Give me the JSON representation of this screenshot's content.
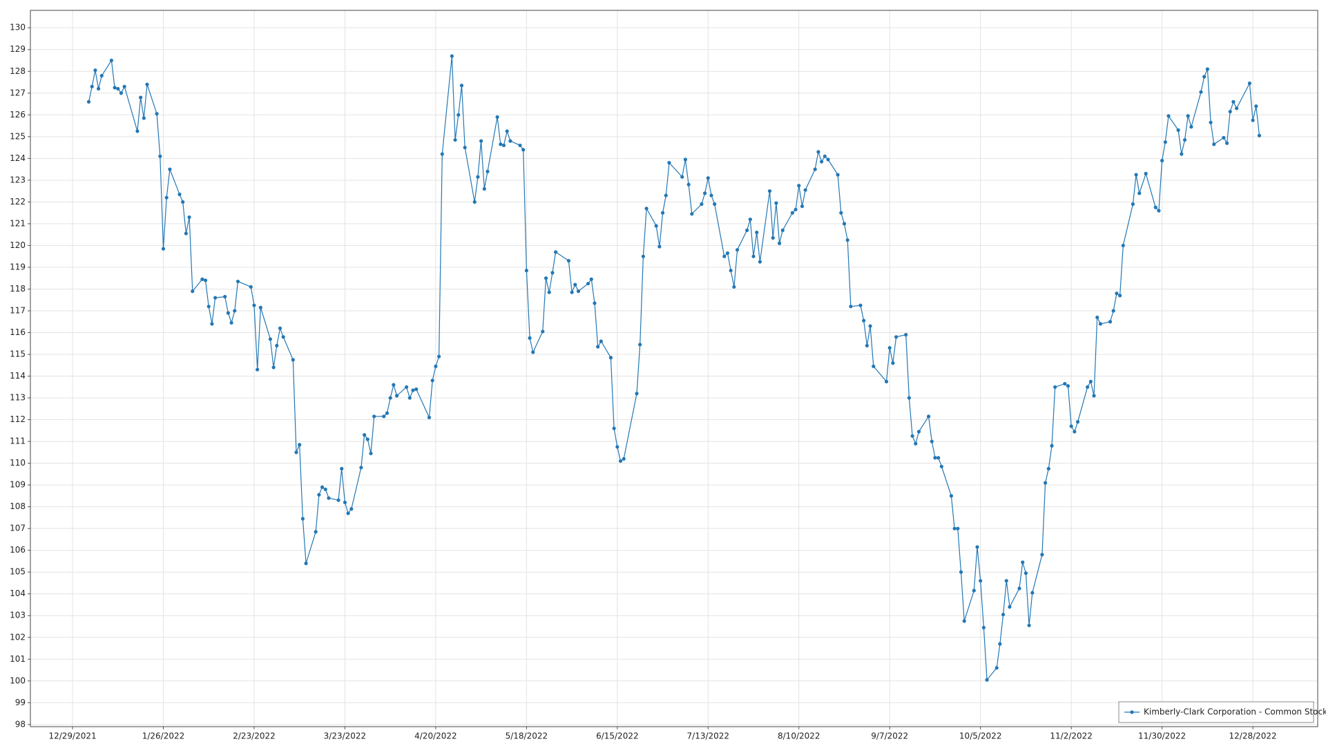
{
  "chart_data": {
    "type": "line",
    "series": [
      {
        "name": "Kimberly-Clark Corporation - Common Stock",
        "color": "#2277b4",
        "x": [
          "2022-01-03",
          "2022-01-04",
          "2022-01-05",
          "2022-01-06",
          "2022-01-07",
          "2022-01-10",
          "2022-01-11",
          "2022-01-12",
          "2022-01-13",
          "2022-01-14",
          "2022-01-18",
          "2022-01-19",
          "2022-01-20",
          "2022-01-21",
          "2022-01-24",
          "2022-01-25",
          "2022-01-26",
          "2022-01-27",
          "2022-01-28",
          "2022-01-31",
          "2022-02-01",
          "2022-02-02",
          "2022-02-03",
          "2022-02-04",
          "2022-02-07",
          "2022-02-08",
          "2022-02-09",
          "2022-02-10",
          "2022-02-11",
          "2022-02-14",
          "2022-02-15",
          "2022-02-16",
          "2022-02-17",
          "2022-02-18",
          "2022-02-22",
          "2022-02-23",
          "2022-02-24",
          "2022-02-25",
          "2022-02-28",
          "2022-03-01",
          "2022-03-02",
          "2022-03-03",
          "2022-03-04",
          "2022-03-07",
          "2022-03-08",
          "2022-03-09",
          "2022-03-10",
          "2022-03-11",
          "2022-03-14",
          "2022-03-15",
          "2022-03-16",
          "2022-03-17",
          "2022-03-18",
          "2022-03-21",
          "2022-03-22",
          "2022-03-23",
          "2022-03-24",
          "2022-03-25",
          "2022-03-28",
          "2022-03-29",
          "2022-03-30",
          "2022-03-31",
          "2022-04-01",
          "2022-04-04",
          "2022-04-05",
          "2022-04-06",
          "2022-04-07",
          "2022-04-08",
          "2022-04-11",
          "2022-04-12",
          "2022-04-13",
          "2022-04-14",
          "2022-04-18",
          "2022-04-19",
          "2022-04-20",
          "2022-04-21",
          "2022-04-22",
          "2022-04-25",
          "2022-04-26",
          "2022-04-27",
          "2022-04-28",
          "2022-04-29",
          "2022-05-02",
          "2022-05-03",
          "2022-05-04",
          "2022-05-05",
          "2022-05-06",
          "2022-05-09",
          "2022-05-10",
          "2022-05-11",
          "2022-05-12",
          "2022-05-13",
          "2022-05-16",
          "2022-05-17",
          "2022-05-18",
          "2022-05-19",
          "2022-05-20",
          "2022-05-23",
          "2022-05-24",
          "2022-05-25",
          "2022-05-26",
          "2022-05-27",
          "2022-05-31",
          "2022-06-01",
          "2022-06-02",
          "2022-06-03",
          "2022-06-06",
          "2022-06-07",
          "2022-06-08",
          "2022-06-09",
          "2022-06-10",
          "2022-06-13",
          "2022-06-14",
          "2022-06-15",
          "2022-06-16",
          "2022-06-17",
          "2022-06-21",
          "2022-06-22",
          "2022-06-23",
          "2022-06-24",
          "2022-06-27",
          "2022-06-28",
          "2022-06-29",
          "2022-06-30",
          "2022-07-01",
          "2022-07-05",
          "2022-07-06",
          "2022-07-07",
          "2022-07-08",
          "2022-07-11",
          "2022-07-12",
          "2022-07-13",
          "2022-07-14",
          "2022-07-15",
          "2022-07-18",
          "2022-07-19",
          "2022-07-20",
          "2022-07-21",
          "2022-07-22",
          "2022-07-25",
          "2022-07-26",
          "2022-07-27",
          "2022-07-28",
          "2022-07-29",
          "2022-08-01",
          "2022-08-02",
          "2022-08-03",
          "2022-08-04",
          "2022-08-05",
          "2022-08-08",
          "2022-08-09",
          "2022-08-10",
          "2022-08-11",
          "2022-08-12",
          "2022-08-15",
          "2022-08-16",
          "2022-08-17",
          "2022-08-18",
          "2022-08-19",
          "2022-08-22",
          "2022-08-23",
          "2022-08-24",
          "2022-08-25",
          "2022-08-26",
          "2022-08-29",
          "2022-08-30",
          "2022-08-31",
          "2022-09-01",
          "2022-09-02",
          "2022-09-06",
          "2022-09-07",
          "2022-09-08",
          "2022-09-09",
          "2022-09-12",
          "2022-09-13",
          "2022-09-14",
          "2022-09-15",
          "2022-09-16",
          "2022-09-19",
          "2022-09-20",
          "2022-09-21",
          "2022-09-22",
          "2022-09-23",
          "2022-09-26",
          "2022-09-27",
          "2022-09-28",
          "2022-09-29",
          "2022-09-30",
          "2022-10-03",
          "2022-10-04",
          "2022-10-05",
          "2022-10-06",
          "2022-10-07",
          "2022-10-10",
          "2022-10-11",
          "2022-10-12",
          "2022-10-13",
          "2022-10-14",
          "2022-10-17",
          "2022-10-18",
          "2022-10-19",
          "2022-10-20",
          "2022-10-21",
          "2022-10-24",
          "2022-10-25",
          "2022-10-26",
          "2022-10-27",
          "2022-10-28",
          "2022-10-31",
          "2022-11-01",
          "2022-11-02",
          "2022-11-03",
          "2022-11-04",
          "2022-11-07",
          "2022-11-08",
          "2022-11-09",
          "2022-11-10",
          "2022-11-11",
          "2022-11-14",
          "2022-11-15",
          "2022-11-16",
          "2022-11-17",
          "2022-11-18",
          "2022-11-21",
          "2022-11-22",
          "2022-11-23",
          "2022-11-25",
          "2022-11-28",
          "2022-11-29",
          "2022-11-30",
          "2022-12-01",
          "2022-12-02",
          "2022-12-05",
          "2022-12-06",
          "2022-12-07",
          "2022-12-08",
          "2022-12-09",
          "2022-12-12",
          "2022-12-13",
          "2022-12-14",
          "2022-12-15",
          "2022-12-16",
          "2022-12-19",
          "2022-12-20",
          "2022-12-21",
          "2022-12-22",
          "2022-12-23",
          "2022-12-27",
          "2022-12-28",
          "2022-12-29",
          "2022-12-30"
        ],
        "values": [
          126.6,
          127.3,
          128.05,
          127.2,
          127.8,
          128.5,
          127.25,
          127.2,
          127.0,
          127.3,
          125.25,
          126.8,
          125.85,
          127.4,
          126.05,
          124.1,
          119.85,
          122.2,
          123.5,
          122.35,
          122.0,
          120.55,
          121.3,
          117.9,
          118.45,
          118.4,
          117.2,
          116.4,
          117.6,
          117.65,
          116.9,
          116.45,
          117.0,
          118.35,
          118.1,
          117.25,
          114.3,
          117.15,
          115.7,
          114.4,
          115.4,
          116.2,
          115.8,
          114.75,
          110.5,
          110.85,
          107.45,
          105.4,
          106.85,
          108.55,
          108.9,
          108.8,
          108.4,
          108.3,
          109.75,
          108.2,
          107.7,
          107.9,
          109.8,
          111.3,
          111.1,
          110.45,
          112.15,
          112.15,
          112.3,
          113.0,
          113.6,
          113.1,
          113.5,
          113.0,
          113.35,
          113.4,
          112.1,
          113.8,
          114.45,
          114.9,
          124.2,
          128.7,
          124.85,
          126.0,
          127.35,
          124.5,
          122.0,
          123.15,
          124.8,
          122.6,
          123.4,
          125.9,
          124.65,
          124.6,
          125.25,
          124.8,
          124.6,
          124.4,
          118.85,
          115.75,
          115.1,
          116.05,
          118.5,
          117.85,
          118.75,
          119.7,
          119.3,
          117.85,
          118.2,
          117.9,
          118.25,
          118.45,
          117.35,
          115.35,
          115.6,
          114.85,
          111.6,
          110.75,
          110.1,
          110.2,
          113.2,
          115.45,
          119.5,
          121.7,
          120.9,
          119.95,
          121.5,
          122.3,
          123.8,
          123.15,
          123.95,
          122.8,
          121.45,
          121.9,
          122.4,
          123.1,
          122.3,
          121.9,
          119.5,
          119.65,
          118.85,
          118.1,
          119.8,
          120.7,
          121.2,
          119.5,
          120.6,
          119.25,
          122.5,
          120.35,
          121.95,
          120.1,
          120.7,
          121.5,
          121.65,
          122.75,
          121.8,
          122.55,
          123.5,
          124.3,
          123.85,
          124.1,
          123.95,
          123.25,
          121.5,
          121.0,
          120.25,
          117.2,
          117.25,
          116.55,
          115.4,
          116.3,
          114.45,
          113.75,
          115.3,
          114.6,
          115.8,
          115.9,
          113.0,
          111.25,
          110.9,
          111.45,
          112.15,
          111.0,
          110.25,
          110.25,
          109.85,
          108.5,
          107.0,
          107.0,
          105.0,
          102.75,
          104.15,
          106.15,
          104.6,
          102.45,
          100.05,
          100.6,
          101.7,
          103.05,
          104.6,
          103.4,
          104.25,
          105.45,
          104.95,
          102.55,
          104.05,
          105.8,
          109.1,
          109.75,
          110.8,
          113.5,
          113.65,
          113.55,
          111.7,
          111.45,
          111.9,
          113.5,
          113.75,
          113.1,
          116.7,
          116.4,
          116.5,
          117.0,
          117.8,
          117.7,
          120.0,
          121.9,
          123.25,
          122.4,
          123.3,
          121.75,
          121.6,
          123.9,
          124.75,
          125.95,
          125.3,
          124.2,
          124.85,
          125.95,
          125.45,
          127.05,
          127.75,
          128.1,
          125.65,
          124.65,
          124.95,
          124.7,
          126.15,
          126.6,
          126.3,
          127.45,
          125.75,
          126.4,
          125.05
        ]
      }
    ],
    "xlim": [
      "2021-12-16",
      "2023-01-17"
    ],
    "xticks": [
      {
        "value": "2021-12-29",
        "label": "12/29/2021"
      },
      {
        "value": "2022-01-26",
        "label": "1/26/2022"
      },
      {
        "value": "2022-02-23",
        "label": "2/23/2022"
      },
      {
        "value": "2022-03-23",
        "label": "3/23/2022"
      },
      {
        "value": "2022-04-20",
        "label": "4/20/2022"
      },
      {
        "value": "2022-05-18",
        "label": "5/18/2022"
      },
      {
        "value": "2022-06-15",
        "label": "6/15/2022"
      },
      {
        "value": "2022-07-13",
        "label": "7/13/2022"
      },
      {
        "value": "2022-08-10",
        "label": "8/10/2022"
      },
      {
        "value": "2022-09-07",
        "label": "9/7/2022"
      },
      {
        "value": "2022-10-05",
        "label": "10/5/2022"
      },
      {
        "value": "2022-11-02",
        "label": "11/2/2022"
      },
      {
        "value": "2022-11-30",
        "label": "11/30/2022"
      },
      {
        "value": "2022-12-28",
        "label": "12/28/2022"
      }
    ],
    "ylim": [
      97.9,
      130.8
    ],
    "yticks": [
      98,
      99,
      100,
      101,
      102,
      103,
      104,
      105,
      106,
      107,
      108,
      109,
      110,
      111,
      112,
      113,
      114,
      115,
      116,
      117,
      118,
      119,
      120,
      121,
      122,
      123,
      124,
      125,
      126,
      127,
      128,
      129,
      130
    ],
    "grid": true,
    "legend": "lower right"
  }
}
